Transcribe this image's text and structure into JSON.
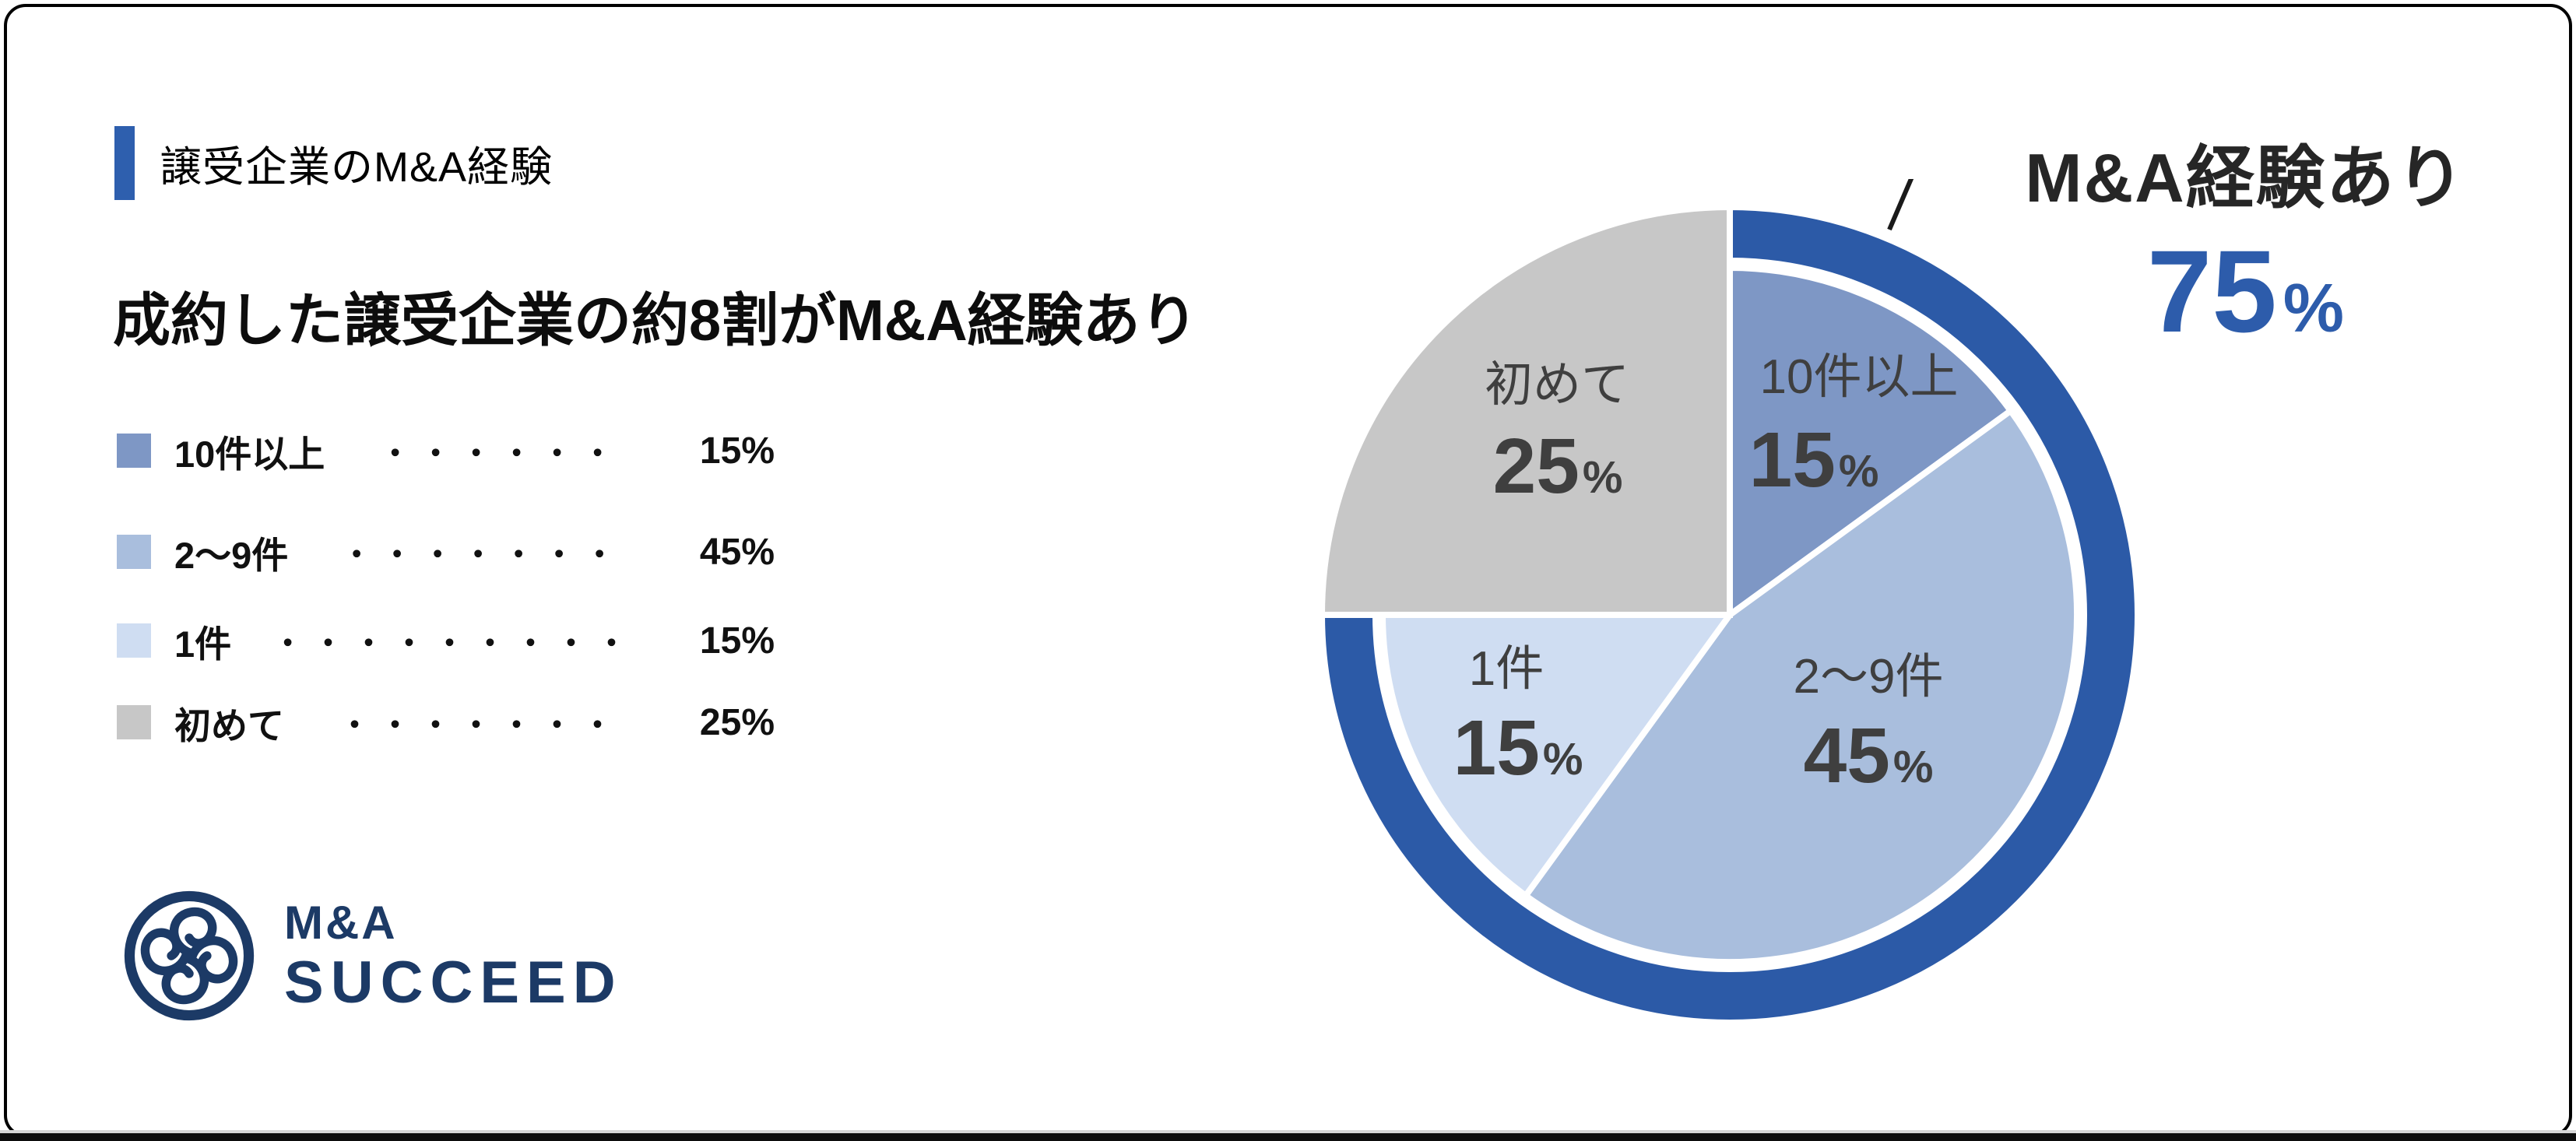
{
  "header": {
    "section_label": "譲受企業のM&A経験",
    "headline": "成約した譲受企業の約8割がM&A経験あり"
  },
  "legend": {
    "items": [
      {
        "label": "10件以上",
        "dots": "・・・・・・",
        "value": "15%",
        "color": "#7e97c5"
      },
      {
        "label": "2〜9件",
        "dots": "・・・・・・・",
        "value": "45%",
        "color": "#a9bedd"
      },
      {
        "label": "1件",
        "dots": "・・・・・・・・・",
        "value": "15%",
        "color": "#cfddf2"
      },
      {
        "label": "初めて",
        "dots": "・・・・・・・",
        "value": "25%",
        "color": "#c7c7c7"
      }
    ]
  },
  "logo": {
    "brand_top": "M&A",
    "brand_bottom": "SUCCEED",
    "color": "#1c3a66"
  },
  "callout": {
    "title": "M&A経験あり",
    "value": "75",
    "unit": "%"
  },
  "chart_data": {
    "type": "pie",
    "title": "譲受企業のM&A経験",
    "categories": [
      "10件以上",
      "2〜9件",
      "1件",
      "初めて"
    ],
    "values": [
      15,
      45,
      15,
      25
    ],
    "unit": "%",
    "start_angle_deg": 0,
    "direction": "clockwise",
    "label_color": "#3f3f3f",
    "stroke_color": "#ffffff",
    "annotation": {
      "label": "M&A経験あり",
      "value": 75,
      "unit": "%",
      "covers": [
        "10件以上",
        "2〜9件",
        "1件"
      ]
    },
    "slices": [
      {
        "name": "10件以上",
        "value": 15,
        "color": "#7e97c5",
        "radius": 446,
        "name_pos": [
          166,
          -285
        ],
        "value_pos": [
          108,
          -165
        ]
      },
      {
        "name": "2〜9件",
        "value": 45,
        "color": "#a9bedd",
        "radius": 446,
        "name_pos": [
          178,
          100
        ],
        "value_pos": [
          178,
          215
        ]
      },
      {
        "name": "1件",
        "value": 15,
        "color": "#cfddf2",
        "radius": 446,
        "name_pos": [
          -287,
          90
        ],
        "value_pos": [
          -272,
          205
        ]
      },
      {
        "name": "初めて",
        "value": 25,
        "color": "#c7c7c7",
        "radius": 524,
        "name_pos": [
          -222,
          -275
        ],
        "value_pos": [
          -221,
          -157
        ]
      }
    ],
    "ring": {
      "color": "#2c5aa7",
      "outer_radius": 524,
      "inner_radius": 455,
      "start_pct": 0,
      "end_pct": 75
    }
  }
}
